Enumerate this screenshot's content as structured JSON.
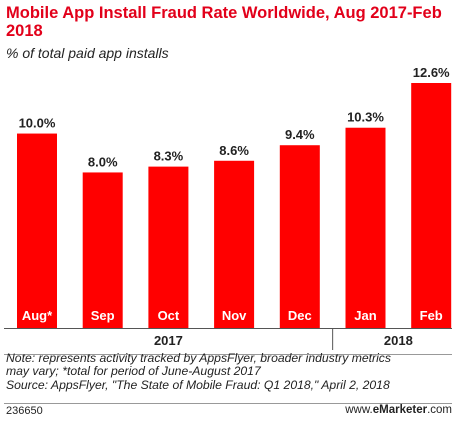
{
  "title": "Mobile App Install Fraud Rate Worldwide, Aug 2017-Feb 2018",
  "subtitle": "% of total paid app installs",
  "chart_data": {
    "type": "bar",
    "categories": [
      "Aug*",
      "Sep",
      "Oct",
      "Nov",
      "Dec",
      "Jan",
      "Feb"
    ],
    "values": [
      10.0,
      8.0,
      8.3,
      8.6,
      9.4,
      10.3,
      12.6
    ],
    "value_labels": [
      "10.0%",
      "8.0%",
      "8.3%",
      "8.6%",
      "9.4%",
      "10.3%",
      "12.6%"
    ],
    "year_groups": [
      {
        "label": "2017",
        "categories": [
          "Aug*",
          "Sep",
          "Oct",
          "Nov",
          "Dec"
        ]
      },
      {
        "label": "2018",
        "categories": [
          "Jan",
          "Feb"
        ]
      }
    ],
    "ylim": [
      0,
      12.6
    ],
    "bar_color": "#ff0000",
    "grid": false
  },
  "notes": {
    "line1": "Note: represents activity tracked by AppsFlyer, broader industry metrics",
    "line2": "may vary; *total for period of June-August 2017",
    "line3": "Source: AppsFlyer, \"The State of Mobile Fraud: Q1 2018,\" April 2, 2018"
  },
  "footer": {
    "chart_id": "236650",
    "brand_prefix": "www.",
    "brand_name": "eMarketer",
    "brand_suffix": ".com"
  }
}
